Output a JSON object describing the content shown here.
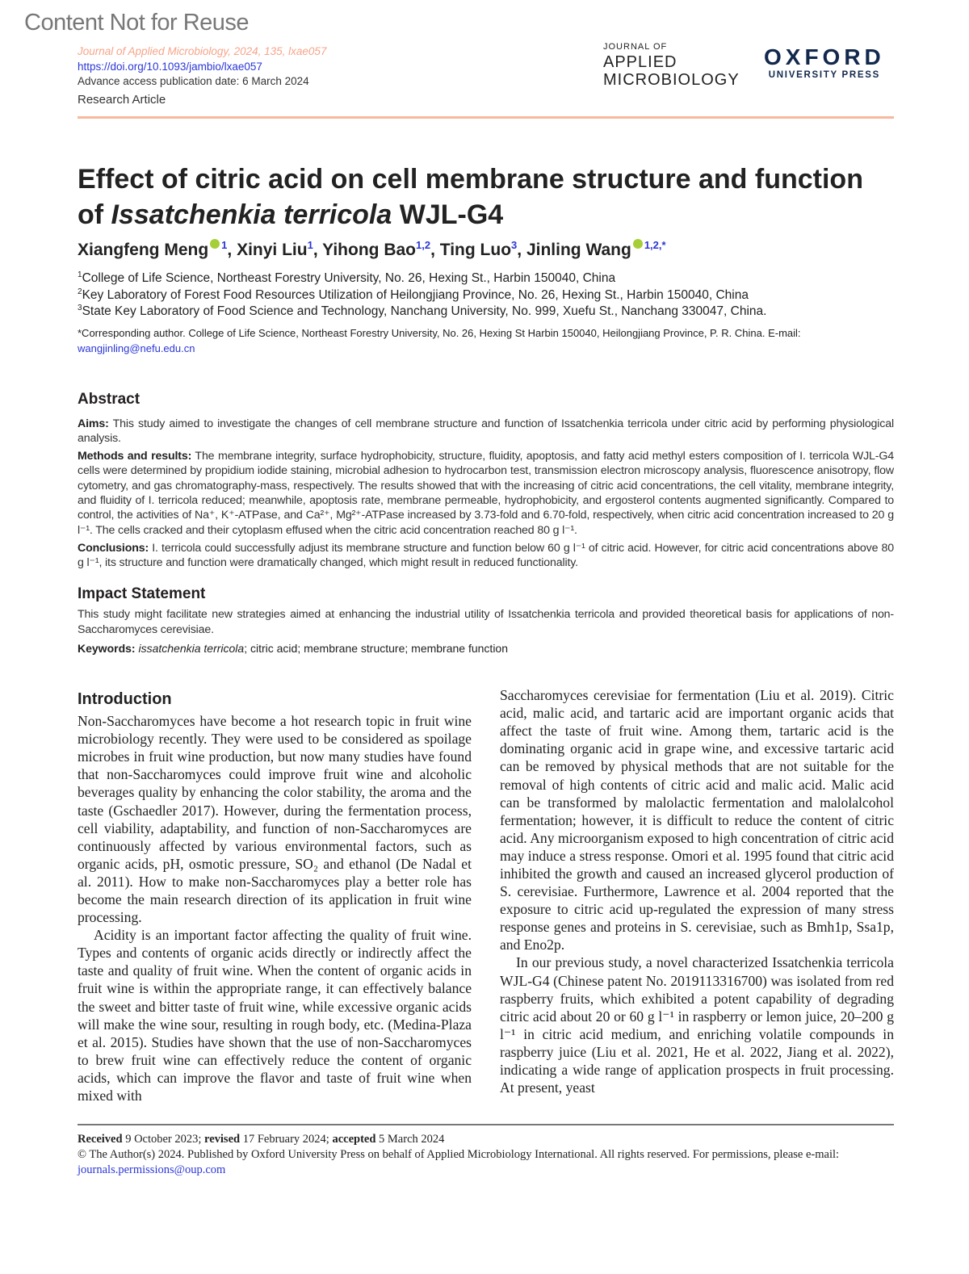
{
  "watermark": "Content Not for Reuse",
  "header": {
    "citation": "Journal of Applied Microbiology, 2024, 135, lxae057",
    "doi": "https://doi.org/10.1093/jambio/lxae057",
    "advance_access": "Advance access publication date: 6 March 2024",
    "article_type": "Research Article",
    "journal_logo": {
      "line1": "JOURNAL OF",
      "line2": "APPLIED",
      "line3": "MICROBIOLOGY"
    },
    "publisher_logo": {
      "line1": "OXFORD",
      "line2": "UNIVERSITY PRESS"
    },
    "accent_color": "#f8b89f"
  },
  "title": {
    "part1": "Effect of citric acid on cell membrane structure and function of ",
    "italic": "Issatchenkia terricola",
    "part2": " WJL-G4"
  },
  "authors": [
    {
      "name": "Xiangfeng Meng",
      "orcid": true,
      "aff": "1"
    },
    {
      "name": "Xinyi Liu",
      "orcid": false,
      "aff": "1"
    },
    {
      "name": "Yihong Bao",
      "orcid": false,
      "aff": "1,2"
    },
    {
      "name": "Ting Luo",
      "orcid": false,
      "aff": "3"
    },
    {
      "name": "Jinling Wang",
      "orcid": true,
      "aff": "1,2,*"
    }
  ],
  "affiliations": [
    {
      "num": "1",
      "text": "College of Life Science, Northeast Forestry University, No. 26, Hexing St., Harbin 150040, China"
    },
    {
      "num": "2",
      "text": "Key Laboratory of Forest Food Resources Utilization of Heilongjiang Province, No. 26, Hexing St., Harbin 150040, China"
    },
    {
      "num": "3",
      "text": "State Key Laboratory of Food Science and Technology, Nanchang University, No. 999, Xuefu St., Nanchang 330047, China."
    }
  ],
  "corresponding": {
    "text": "*Corresponding author. College of Life Science, Northeast Forestry University, No. 26, Hexing St Harbin 150040, Heilongjiang Province, P. R. China. E-mail: ",
    "email": "wangjinling@nefu.edu.cn"
  },
  "abstract": {
    "heading": "Abstract",
    "aims_label": "Aims:",
    "aims": " This study aimed to investigate the changes of cell membrane structure and function of Issatchenkia terricola under citric acid by performing physiological analysis.",
    "methods_label": "Methods and results:",
    "methods": " The membrane integrity, surface hydrophobicity, structure, fluidity, apoptosis, and fatty acid methyl esters composition of I. terricola WJL-G4 cells were determined by propidium iodide staining, microbial adhesion to hydrocarbon test, transmission electron microscopy analysis, fluorescence anisotropy, flow cytometry, and gas chromatography-mass, respectively. The results showed that with the increasing of citric acid concentrations, the cell vitality, membrane integrity, and fluidity of I. terricola reduced; meanwhile, apoptosis rate, membrane permeable, hydrophobicity, and ergosterol contents augmented significantly. Compared to control, the activities of Na⁺, K⁺-ATPase, and Ca²⁺, Mg²⁺-ATPase increased by 3.73-fold and 6.70-fold, respectively, when citric acid concentration increased to 20 g l⁻¹. The cells cracked and their cytoplasm effused when the citric acid concentration reached 80 g l⁻¹.",
    "conclusions_label": "Conclusions:",
    "conclusions": " I. terricola could successfully adjust its membrane structure and function below 60 g l⁻¹ of citric acid. However, for citric acid concentrations above 80 g l⁻¹, its structure and function were dramatically changed, which might result in reduced functionality."
  },
  "impact": {
    "heading": "Impact Statement",
    "text": "This study might facilitate new strategies aimed at enhancing the industrial utility of Issatchenkia terricola and provided theoretical basis for applications of non-Saccharomyces cerevisiae."
  },
  "keywords": {
    "label": "Keywords:",
    "italic": " issatchenkia terricola",
    "rest": "; citric acid; membrane structure; membrane function"
  },
  "introduction": {
    "heading": "Introduction",
    "left": [
      "Non-Saccharomyces have become a hot research topic in fruit wine microbiology recently. They were used to be considered as spoilage microbes in fruit wine production, but now many studies have found that non-Saccharomyces could improve fruit wine and alcoholic beverages quality by enhancing the color stability, the aroma and the taste (Gschaedler 2017). However, during the fermentation process, cell viability, adaptability, and function of non-Saccharomyces are continuously affected by various environmental factors, such as organic acids, pH, osmotic pressure, SO₂ and ethanol (De Nadal et al. 2011). How to make non-Saccharomyces play a better role has become the main research direction of its application in fruit wine processing.",
      "Acidity is an important factor affecting the quality of fruit wine. Types and contents of organic acids directly or indirectly affect the taste and quality of fruit wine. When the content of organic acids in fruit wine is within the appropriate range, it can effectively balance the sweet and bitter taste of fruit wine, while excessive organic acids will make the wine sour, resulting in rough body, etc. (Medina-Plaza et al. 2015). Studies have shown that the use of non-Saccharomyces to brew fruit wine can effectively reduce the content of organic acids, which can improve the flavor and taste of fruit wine when mixed with"
    ],
    "right": [
      "Saccharomyces cerevisiae for fermentation (Liu et al. 2019). Citric acid, malic acid, and tartaric acid are important organic acids that affect the taste of fruit wine. Among them, tartaric acid is the dominating organic acid in grape wine, and excessive tartaric acid can be removed by physical methods that are not suitable for the removal of high contents of citric acid and malic acid. Malic acid can be transformed by malolactic fermentation and malolalcohol fermentation; however, it is difficult to reduce the content of citric acid. Any microorganism exposed to high concentration of citric acid may induce a stress response. Omori et al. 1995 found that citric acid inhibited the growth and caused an increased glycerol production of S. cerevisiae. Furthermore, Lawrence et al. 2004 reported that the exposure to citric acid up-regulated the expression of many stress response genes and proteins in S. cerevisiae, such as Bmh1p, Ssa1p, and Eno2p.",
      "In our previous study, a novel characterized Issatchenkia terricola WJL-G4 (Chinese patent No. 2019113316700) was isolated from red raspberry fruits, which exhibited a potent capability of degrading citric acid about 20 or 60 g l⁻¹ in raspberry or lemon juice, 20–200 g l⁻¹ in citric acid medium, and enriching volatile compounds in raspberry juice (Liu et al. 2021, He et al. 2022, Jiang et al. 2022), indicating a wide range of application prospects in fruit processing. At present, yeast"
    ]
  },
  "footer": {
    "received_label": "Received",
    "received": " 9 October 2023; ",
    "revised_label": "revised",
    "revised": " 17 February 2024; ",
    "accepted_label": "accepted",
    "accepted": " 5 March 2024",
    "copyright": "© The Author(s) 2024. Published by Oxford University Press on behalf of Applied Microbiology International. All rights reserved. For permissions, please e-mail: ",
    "email": "journals.permissions@oup.com"
  }
}
